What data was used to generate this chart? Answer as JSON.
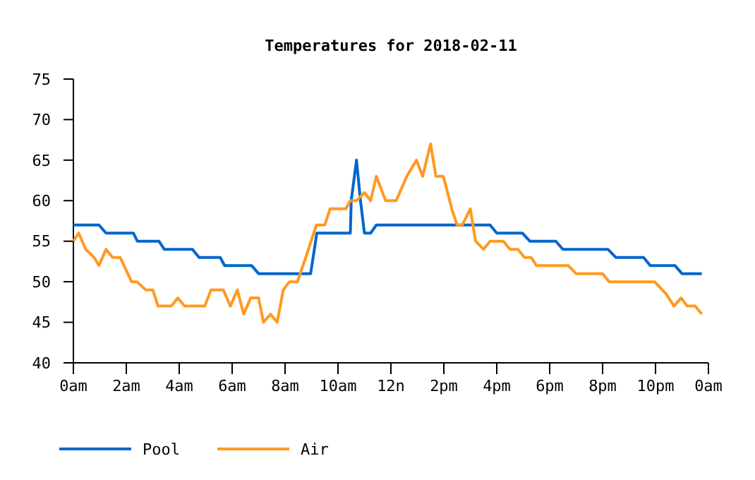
{
  "chart_data": {
    "type": "line",
    "title": "Temperatures for 2018-02-11",
    "xlim": [
      "2018-02-11T00:00",
      "2018-02-12T00:00"
    ],
    "xticks": [
      {
        "value": "2018-02-11T00:00",
        "label": "0am"
      },
      {
        "value": "2018-02-11T02:00",
        "label": "2am"
      },
      {
        "value": "2018-02-11T04:00",
        "label": "4am"
      },
      {
        "value": "2018-02-11T06:00",
        "label": "6am"
      },
      {
        "value": "2018-02-11T08:00",
        "label": "8am"
      },
      {
        "value": "2018-02-11T10:00",
        "label": "10am"
      },
      {
        "value": "2018-02-11T12:00",
        "label": "12n"
      },
      {
        "value": "2018-02-11T14:00",
        "label": "2pm"
      },
      {
        "value": "2018-02-11T16:00",
        "label": "4pm"
      },
      {
        "value": "2018-02-11T18:00",
        "label": "6pm"
      },
      {
        "value": "2018-02-11T20:00",
        "label": "8pm"
      },
      {
        "value": "2018-02-11T22:00",
        "label": "10pm"
      },
      {
        "value": "2018-02-12T00:00",
        "label": "0am"
      }
    ],
    "ylim": [
      40,
      75
    ],
    "yticks": [
      40,
      45,
      50,
      55,
      60,
      65,
      70,
      75
    ],
    "grid": false,
    "legend": "bottom left",
    "marker": "none",
    "line_style": "solid",
    "series": [
      {
        "name": "Pool",
        "color": "#0066cc",
        "x": [
          "2018-02-11T00:00",
          "2018-02-11T00:58",
          "2018-02-11T01:14",
          "2018-02-11T02:16",
          "2018-02-11T02:25",
          "2018-02-11T03:14",
          "2018-02-11T03:26",
          "2018-02-11T04:30",
          "2018-02-11T04:45",
          "2018-02-11T05:33",
          "2018-02-11T05:43",
          "2018-02-11T06:44",
          "2018-02-11T07:00",
          "2018-02-11T08:58",
          "2018-02-11T09:12",
          "2018-02-11T10:28",
          "2018-02-11T10:30",
          "2018-02-11T10:42",
          "2018-02-11T10:51",
          "2018-02-11T11:00",
          "2018-02-11T11:14",
          "2018-02-11T11:27",
          "2018-02-11T15:45",
          "2018-02-11T16:00",
          "2018-02-11T16:58",
          "2018-02-11T17:15",
          "2018-02-11T18:14",
          "2018-02-11T18:30",
          "2018-02-11T20:12",
          "2018-02-11T20:30",
          "2018-02-11T21:33",
          "2018-02-11T21:48",
          "2018-02-11T22:44",
          "2018-02-11T23:00",
          "2018-02-11T23:45"
        ],
        "values": [
          57,
          57,
          56,
          56,
          55,
          55,
          54,
          54,
          53,
          53,
          52,
          52,
          51,
          51,
          56,
          56,
          60,
          65,
          60,
          56,
          56,
          57,
          57,
          56,
          56,
          55,
          55,
          54,
          54,
          53,
          53,
          52,
          52,
          51,
          51
        ]
      },
      {
        "name": "Air",
        "color": "#ff9922",
        "x": [
          "2018-02-11T00:00",
          "2018-02-11T00:12",
          "2018-02-11T00:28",
          "2018-02-11T00:47",
          "2018-02-11T00:58",
          "2018-02-11T01:14",
          "2018-02-11T01:29",
          "2018-02-11T01:46",
          "2018-02-11T02:12",
          "2018-02-11T02:24",
          "2018-02-11T02:44",
          "2018-02-11T03:00",
          "2018-02-11T03:12",
          "2018-02-11T03:42",
          "2018-02-11T03:57",
          "2018-02-11T04:12",
          "2018-02-11T04:58",
          "2018-02-11T05:12",
          "2018-02-11T05:40",
          "2018-02-11T05:56",
          "2018-02-11T06:12",
          "2018-02-11T06:26",
          "2018-02-11T06:42",
          "2018-02-11T07:00",
          "2018-02-11T07:11",
          "2018-02-11T07:27",
          "2018-02-11T07:42",
          "2018-02-11T07:56",
          "2018-02-11T08:10",
          "2018-02-11T08:28",
          "2018-02-11T08:47",
          "2018-02-11T09:11",
          "2018-02-11T09:30",
          "2018-02-11T09:42",
          "2018-02-11T10:18",
          "2018-02-11T10:28",
          "2018-02-11T10:42",
          "2018-02-11T11:00",
          "2018-02-11T11:14",
          "2018-02-11T11:27",
          "2018-02-11T11:48",
          "2018-02-11T12:04",
          "2018-02-11T12:12",
          "2018-02-11T12:36",
          "2018-02-11T12:58",
          "2018-02-11T13:12",
          "2018-02-11T13:30",
          "2018-02-11T13:42",
          "2018-02-11T13:59",
          "2018-02-11T14:18",
          "2018-02-11T14:30",
          "2018-02-11T14:42",
          "2018-02-11T15:00",
          "2018-02-11T15:12",
          "2018-02-11T15:30",
          "2018-02-11T15:45",
          "2018-02-11T16:15",
          "2018-02-11T16:30",
          "2018-02-11T16:48",
          "2018-02-11T17:03",
          "2018-02-11T17:18",
          "2018-02-11T17:30",
          "2018-02-11T18:42",
          "2018-02-11T19:00",
          "2018-02-11T20:00",
          "2018-02-11T20:15",
          "2018-02-11T21:58",
          "2018-02-11T22:24",
          "2018-02-11T22:42",
          "2018-02-11T22:58",
          "2018-02-11T23:12",
          "2018-02-11T23:30",
          "2018-02-11T23:45"
        ],
        "values": [
          55,
          56,
          54,
          53,
          52,
          54,
          53,
          53,
          50,
          50,
          49,
          49,
          47,
          47,
          48,
          47,
          47,
          49,
          49,
          47,
          49,
          46,
          48,
          48,
          45,
          46,
          45,
          49,
          50,
          50,
          53,
          57,
          57,
          59,
          59,
          60,
          60,
          61,
          60,
          63,
          60,
          60,
          60,
          63,
          65,
          63,
          67,
          63,
          63,
          59,
          57,
          57,
          59,
          55,
          54,
          55,
          55,
          54,
          54,
          53,
          53,
          52,
          52,
          51,
          51,
          50,
          50,
          48.5,
          47,
          48,
          47,
          47,
          46
        ]
      }
    ]
  }
}
